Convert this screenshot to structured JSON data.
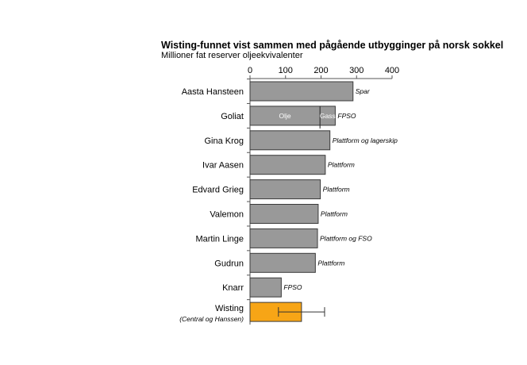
{
  "chart_data": {
    "type": "bar",
    "orientation": "horizontal",
    "title": "Wisting-funnet vist sammen med pågående utbygginger på norsk sokkel",
    "subtitle": "Millioner fat reserver oljeekvivalenter",
    "xlim": [
      0,
      400
    ],
    "xticks": [
      0,
      100,
      200,
      300,
      400
    ],
    "grid": false,
    "categories": [
      {
        "name": "Aasta Hansteen",
        "sublabel": "",
        "value": 290,
        "note": "Spar"
      },
      {
        "name": "Goliat",
        "sublabel": "",
        "value": 240,
        "note": "FPSO",
        "segments": [
          {
            "label": "Olje",
            "value": 197
          },
          {
            "label": "Gass",
            "value": 43
          }
        ]
      },
      {
        "name": "Gina Krog",
        "sublabel": "",
        "value": 225,
        "note": "Plattform og lagerskip"
      },
      {
        "name": "Ivar Aasen",
        "sublabel": "",
        "value": 212,
        "note": "Plattform"
      },
      {
        "name": "Edvard Grieg",
        "sublabel": "",
        "value": 198,
        "note": "Plattform"
      },
      {
        "name": "Valemon",
        "sublabel": "",
        "value": 192,
        "note": "Plattform"
      },
      {
        "name": "Martin Linge",
        "sublabel": "",
        "value": 190,
        "note": "Plattform og FSO"
      },
      {
        "name": "Gudrun",
        "sublabel": "",
        "value": 184,
        "note": "Plattform"
      },
      {
        "name": "Knarr",
        "sublabel": "",
        "value": 88,
        "note": "FPSO"
      },
      {
        "name": "Wisting",
        "sublabel": "(Central og Hanssen)",
        "value": 145,
        "note": "",
        "error_range": [
          80,
          210
        ],
        "highlight": true
      }
    ]
  },
  "colors": {
    "bar": "#999999",
    "bar_highlight": "#f7a516",
    "bar_stroke": "#3a3a3a",
    "axis": "#555555"
  }
}
